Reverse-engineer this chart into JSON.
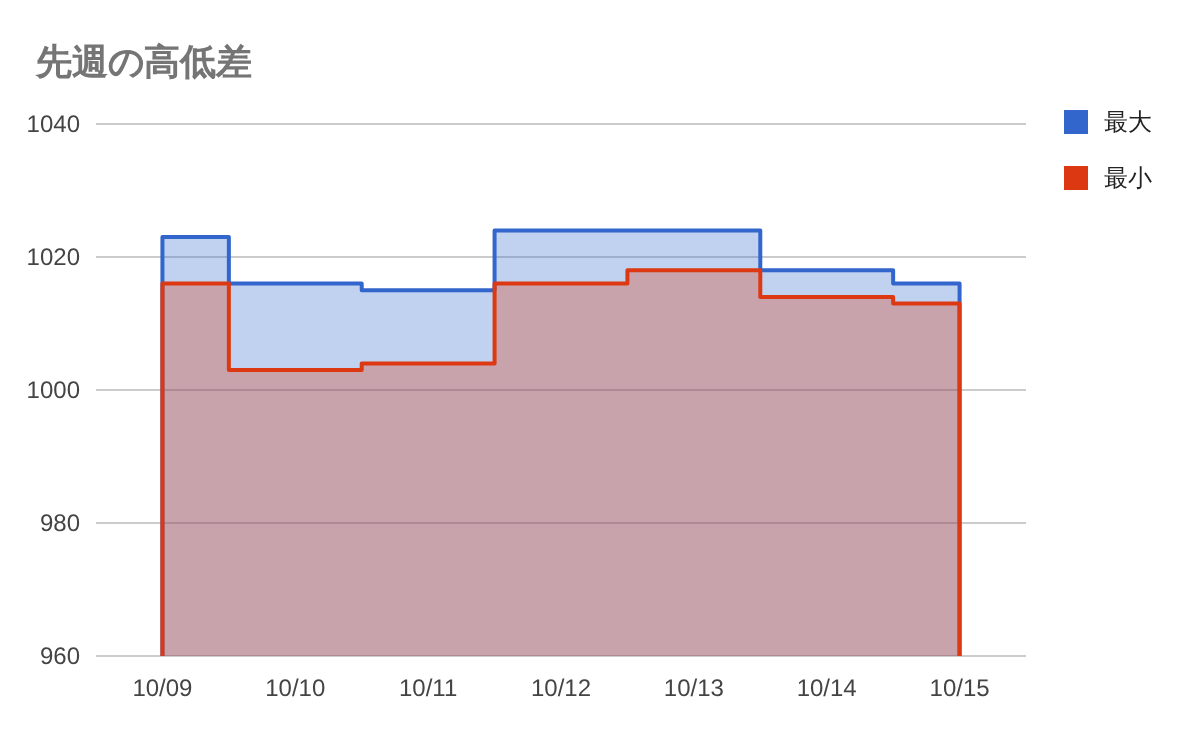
{
  "chart_data": {
    "type": "area",
    "title": "先週の高低差",
    "categories": [
      "10/09",
      "10/10",
      "10/11",
      "10/12",
      "10/13",
      "10/14",
      "10/15"
    ],
    "series": [
      {
        "name": "最大",
        "color": "#3366cc",
        "values": [
          1023,
          1016,
          1015,
          1024,
          1024,
          1018,
          1016
        ]
      },
      {
        "name": "最小",
        "color": "#dc3912",
        "values": [
          1016,
          1003,
          1004,
          1016,
          1018,
          1014,
          1013
        ]
      }
    ],
    "ylim": [
      960,
      1040
    ],
    "yticks": [
      960,
      980,
      1000,
      1020,
      1040
    ],
    "grid": "y",
    "legend": "top right"
  }
}
